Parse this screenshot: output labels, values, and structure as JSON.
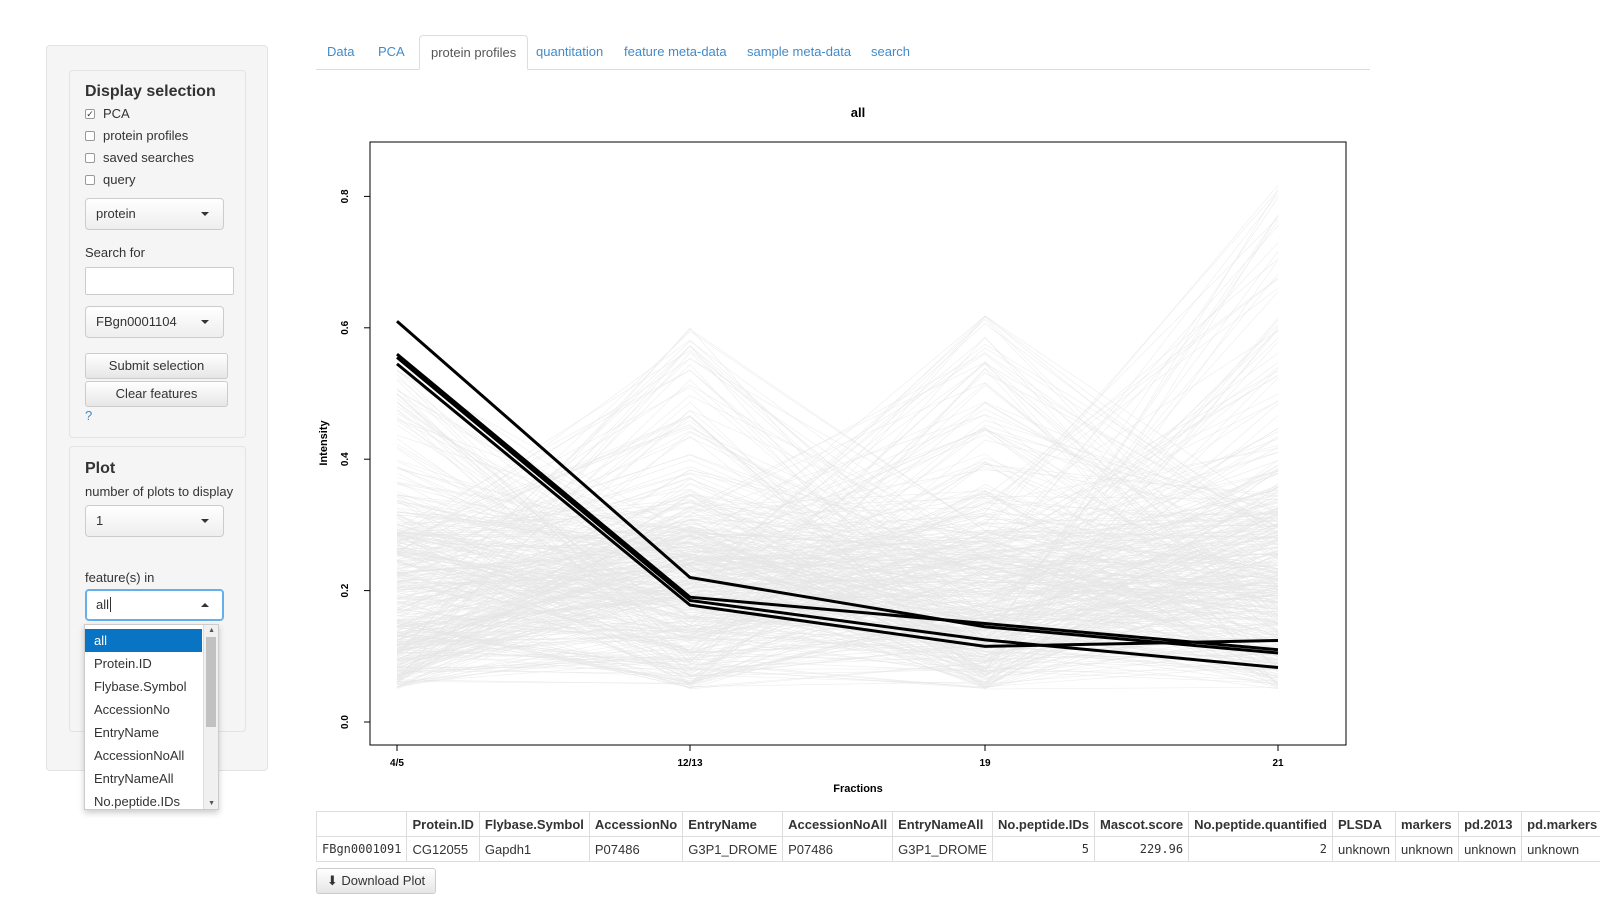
{
  "sidebar": {
    "display_selection": {
      "title": "Display selection",
      "checkboxes": [
        {
          "label": "PCA",
          "checked": true
        },
        {
          "label": "protein profiles",
          "checked": false
        },
        {
          "label": "saved searches",
          "checked": false
        },
        {
          "label": "query",
          "checked": false
        }
      ],
      "type_select": "protein",
      "search_label": "Search for",
      "search_value": "",
      "id_select": "FBgn0001104",
      "submit_label": "Submit selection",
      "clear_label": "Clear features",
      "help": "?"
    },
    "plot": {
      "title": "Plot",
      "nplots_label": "number of plots to display",
      "nplots_value": "1",
      "features_label": "feature(s) in",
      "features_value": "all",
      "dropdown_options": [
        "all",
        "Protein.ID",
        "Flybase.Symbol",
        "AccessionNo",
        "EntryName",
        "AccessionNoAll",
        "EntryNameAll",
        "No.peptide.IDs"
      ]
    }
  },
  "tabs": [
    "Data",
    "PCA",
    "protein profiles",
    "quantitation",
    "feature meta-data",
    "sample meta-data",
    "search"
  ],
  "active_tab": 2,
  "chart_data": {
    "type": "line",
    "title": "all",
    "xlabel": "Fractions",
    "ylabel": "Intensity",
    "categories": [
      "4/5",
      "12/13",
      "19",
      "21"
    ],
    "ylim": [
      0.0,
      0.88
    ],
    "yticks": [
      "0.0",
      "0.2",
      "0.4",
      "0.6",
      "0.8"
    ],
    "background_series_color": "#e6e6e6",
    "highlight_color": "#000000",
    "highlight_series": [
      {
        "values": [
          0.61,
          0.22,
          0.145,
          0.105
        ]
      },
      {
        "values": [
          0.56,
          0.19,
          0.15,
          0.11
        ]
      },
      {
        "values": [
          0.545,
          0.178,
          0.115,
          0.124
        ]
      },
      {
        "values": [
          0.555,
          0.185,
          0.125,
          0.083
        ]
      }
    ]
  },
  "table": {
    "headers": [
      "",
      "Protein.ID",
      "Flybase.Symbol",
      "AccessionNo",
      "EntryName",
      "AccessionNoAll",
      "EntryNameAll",
      "No.peptide.IDs",
      "Mascot.score",
      "No.peptide.quantified",
      "PLSDA",
      "markers",
      "pd.2013",
      "pd.markers"
    ],
    "rows": [
      [
        "FBgn0001091",
        "CG12055",
        "Gapdh1",
        "P07486",
        "G3P1_DROME",
        "P07486",
        "G3P1_DROME",
        "5",
        "229.96",
        "2",
        "unknown",
        "unknown",
        "unknown",
        "unknown"
      ]
    ]
  },
  "download_label": "Download Plot"
}
